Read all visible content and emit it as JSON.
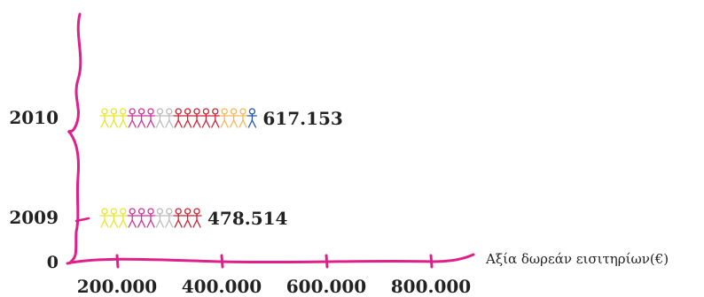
{
  "chart_data": {
    "type": "bar",
    "style": "pictograph",
    "orientation": "horizontal",
    "categories": [
      "2009",
      "2010"
    ],
    "values": [
      478514,
      617153
    ],
    "value_labels": [
      "478.514",
      "617.153"
    ],
    "xlabel": "Αξία δωρεάν εισιτηρίων(€)",
    "ylabel": "",
    "origin_label": "0",
    "x_tick_labels": [
      "200.000",
      "400.000",
      "600.000",
      "800.000"
    ],
    "x_ticks": [
      200000,
      400000,
      600000,
      800000
    ],
    "xlim": [
      0,
      800000
    ],
    "grid": false,
    "figure_unit_value": 40000,
    "figure_colors": {
      "2009": [
        "#e6e62e",
        "#e6e62e",
        "#e6e62e",
        "#cc3399",
        "#cc3399",
        "#cc3399",
        "#bbbbbb",
        "#bbbbbb",
        "#cc2233",
        "#cc2233",
        "#cc2233"
      ],
      "2010": [
        "#e6e62e",
        "#e6e62e",
        "#e6e62e",
        "#cc3399",
        "#cc3399",
        "#cc3399",
        "#bbbbbb",
        "#bbbbbb",
        "#cc2233",
        "#cc2233",
        "#cc2233",
        "#cc2233",
        "#cc2233",
        "#f5b75a",
        "#f5b75a",
        "#f5b75a",
        "#2255aa"
      ]
    },
    "axis_color": "#e0208a"
  }
}
